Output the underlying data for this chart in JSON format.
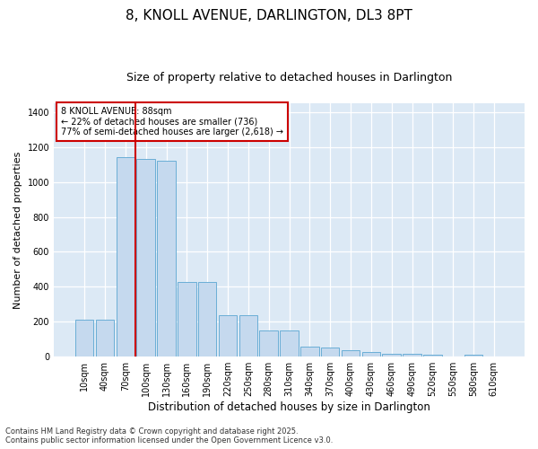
{
  "title": "8, KNOLL AVENUE, DARLINGTON, DL3 8PT",
  "subtitle": "Size of property relative to detached houses in Darlington",
  "xlabel": "Distribution of detached houses by size in Darlington",
  "ylabel": "Number of detached properties",
  "categories": [
    "10sqm",
    "40sqm",
    "70sqm",
    "100sqm",
    "130sqm",
    "160sqm",
    "190sqm",
    "220sqm",
    "250sqm",
    "280sqm",
    "310sqm",
    "340sqm",
    "370sqm",
    "400sqm",
    "430sqm",
    "460sqm",
    "490sqm",
    "520sqm",
    "550sqm",
    "580sqm",
    "610sqm"
  ],
  "values": [
    210,
    210,
    1140,
    1130,
    1120,
    430,
    430,
    235,
    235,
    150,
    150,
    60,
    55,
    38,
    25,
    15,
    15,
    13,
    0,
    13,
    0
  ],
  "bar_color": "#c5d9ee",
  "bar_edge_color": "#6aaed6",
  "background_color": "#dce9f5",
  "grid_color": "#ffffff",
  "vline_color": "#cc0000",
  "annotation_text": "8 KNOLL AVENUE: 88sqm\n← 22% of detached houses are smaller (736)\n77% of semi-detached houses are larger (2,618) →",
  "annotation_box_color": "#cc0000",
  "annotation_box_fill": "#ffffff",
  "ylim": [
    0,
    1450
  ],
  "yticks": [
    0,
    200,
    400,
    600,
    800,
    1000,
    1200,
    1400
  ],
  "footnote": "Contains HM Land Registry data © Crown copyright and database right 2025.\nContains public sector information licensed under the Open Government Licence v3.0.",
  "fig_facecolor": "#ffffff",
  "title_fontsize": 11,
  "subtitle_fontsize": 9,
  "xlabel_fontsize": 8.5,
  "ylabel_fontsize": 8,
  "tick_fontsize": 7,
  "annot_fontsize": 7,
  "footnote_fontsize": 6
}
